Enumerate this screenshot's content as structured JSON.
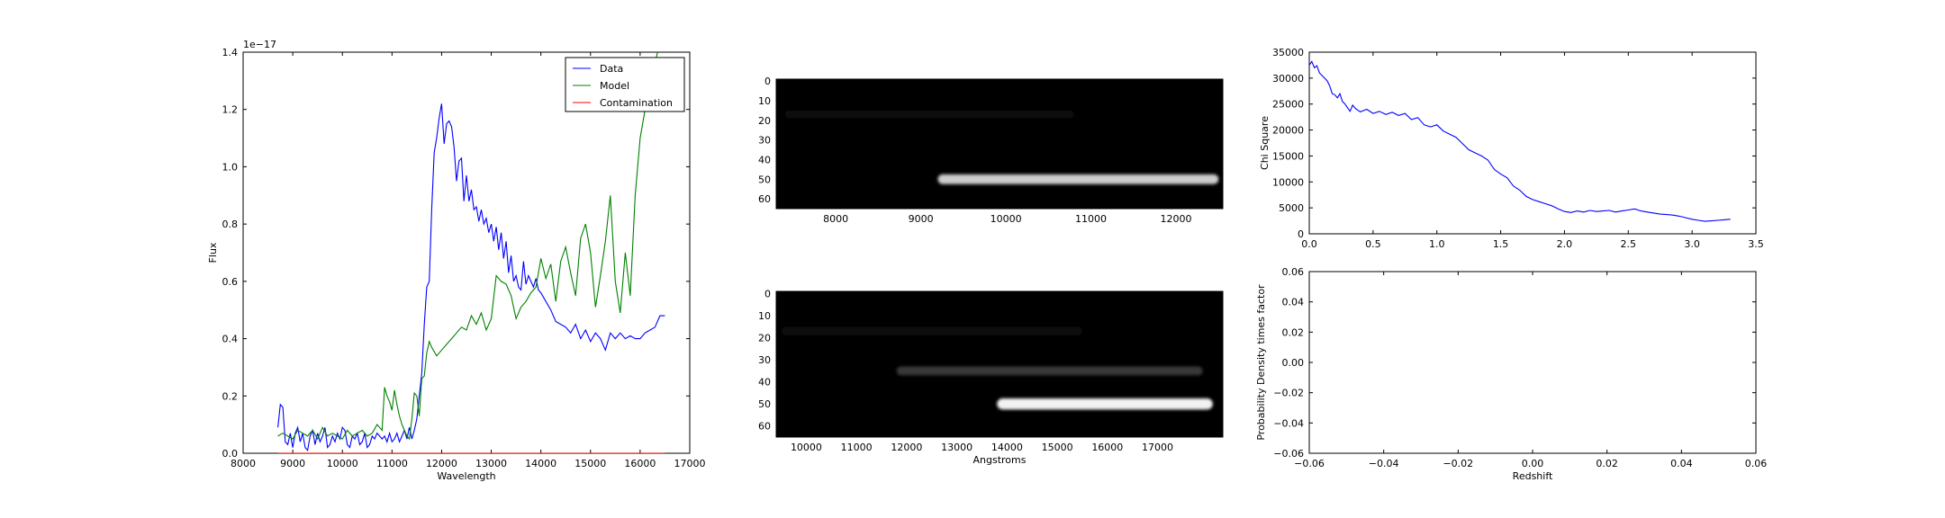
{
  "chart_data": [
    {
      "id": "spectrum",
      "type": "line",
      "xlabel": "Wavelength",
      "ylabel": "Flux",
      "offset_text": "1e−17",
      "xlim": [
        8000,
        17000
      ],
      "ylim": [
        0.0,
        1.4
      ],
      "xticks": [
        "8000",
        "9000",
        "10000",
        "11000",
        "12000",
        "13000",
        "14000",
        "15000",
        "16000",
        "17000"
      ],
      "yticks": [
        "0.0",
        "0.2",
        "0.4",
        "0.6",
        "0.8",
        "1.0",
        "1.2",
        "1.4"
      ],
      "legend_position": "top-right",
      "series": [
        {
          "name": "Data",
          "color": "#0000ff",
          "x": [
            8700,
            8750,
            8800,
            8850,
            8900,
            8950,
            9000,
            9050,
            9100,
            9150,
            9200,
            9250,
            9300,
            9350,
            9400,
            9450,
            9500,
            9550,
            9600,
            9650,
            9700,
            9750,
            9800,
            9850,
            9900,
            9950,
            10000,
            10050,
            10100,
            10150,
            10200,
            10250,
            10300,
            10350,
            10400,
            10450,
            10500,
            10550,
            10600,
            10650,
            10700,
            10750,
            10800,
            10850,
            10900,
            10950,
            11000,
            11050,
            11100,
            11150,
            11200,
            11250,
            11300,
            11350,
            11400,
            11450,
            11500,
            11550,
            11600,
            11650,
            11700,
            11750,
            11800,
            11850,
            11900,
            11950,
            12000,
            12050,
            12100,
            12150,
            12200,
            12250,
            12300,
            12350,
            12400,
            12450,
            12500,
            12550,
            12600,
            12650,
            12700,
            12750,
            12800,
            12850,
            12900,
            12950,
            13000,
            13050,
            13100,
            13150,
            13200,
            13250,
            13300,
            13350,
            13400,
            13450,
            13500,
            13550,
            13600,
            13650,
            13700,
            13750,
            13800,
            13850,
            13900,
            13950,
            14000,
            14100,
            14200,
            14300,
            14400,
            14500,
            14600,
            14700,
            14800,
            14900,
            15000,
            15100,
            15200,
            15300,
            15400,
            15500,
            15600,
            15700,
            15800,
            15900,
            16000,
            16100,
            16200,
            16300,
            16400,
            16500
          ],
          "values": [
            0.09,
            0.17,
            0.16,
            0.04,
            0.03,
            0.07,
            0.02,
            0.07,
            0.09,
            0.04,
            0.07,
            0.02,
            0.01,
            0.06,
            0.08,
            0.03,
            0.07,
            0.04,
            0.06,
            0.09,
            0.02,
            0.03,
            0.06,
            0.04,
            0.07,
            0.05,
            0.09,
            0.08,
            0.03,
            0.02,
            0.06,
            0.05,
            0.07,
            0.03,
            0.04,
            0.07,
            0.02,
            0.03,
            0.06,
            0.05,
            0.07,
            0.06,
            0.05,
            0.06,
            0.04,
            0.07,
            0.04,
            0.05,
            0.07,
            0.04,
            0.06,
            0.08,
            0.05,
            0.09,
            0.05,
            0.08,
            0.12,
            0.2,
            0.28,
            0.45,
            0.58,
            0.6,
            0.85,
            1.05,
            1.1,
            1.17,
            1.22,
            1.08,
            1.15,
            1.16,
            1.14,
            1.07,
            0.95,
            1.02,
            1.03,
            0.88,
            0.97,
            0.88,
            0.92,
            0.85,
            0.86,
            0.81,
            0.85,
            0.8,
            0.82,
            0.77,
            0.8,
            0.74,
            0.79,
            0.71,
            0.77,
            0.68,
            0.74,
            0.63,
            0.69,
            0.6,
            0.62,
            0.58,
            0.57,
            0.67,
            0.59,
            0.62,
            0.6,
            0.58,
            0.61,
            0.57,
            0.56,
            0.53,
            0.5,
            0.46,
            0.45,
            0.44,
            0.42,
            0.45,
            0.4,
            0.43,
            0.39,
            0.42,
            0.4,
            0.36,
            0.42,
            0.4,
            0.42,
            0.4,
            0.41,
            0.4,
            0.4,
            0.42,
            0.43,
            0.44,
            0.48,
            0.48
          ]
        },
        {
          "name": "Model",
          "color": "#008000",
          "x": [
            8700,
            8800,
            8900,
            9000,
            9100,
            9200,
            9300,
            9400,
            9500,
            9600,
            9700,
            9800,
            9900,
            10000,
            10100,
            10200,
            10300,
            10400,
            10500,
            10600,
            10700,
            10750,
            10800,
            10850,
            10900,
            10950,
            11000,
            11050,
            11100,
            11150,
            11200,
            11250,
            11300,
            11350,
            11400,
            11450,
            11500,
            11550,
            11600,
            11650,
            11700,
            11750,
            11800,
            11900,
            12000,
            12100,
            12200,
            12300,
            12400,
            12500,
            12600,
            12700,
            12800,
            12900,
            13000,
            13100,
            13200,
            13300,
            13400,
            13500,
            13600,
            13700,
            13800,
            13900,
            14000,
            14100,
            14200,
            14300,
            14400,
            14500,
            14600,
            14700,
            14800,
            14900,
            15000,
            15100,
            15200,
            15300,
            15400,
            15500,
            15600,
            15700,
            15800,
            15900,
            16000,
            16100,
            16150,
            16200,
            16250,
            16300,
            16350,
            16400
          ],
          "values": [
            0.06,
            0.07,
            0.06,
            0.05,
            0.08,
            0.07,
            0.06,
            0.08,
            0.05,
            0.09,
            0.06,
            0.07,
            0.06,
            0.05,
            0.08,
            0.06,
            0.07,
            0.08,
            0.06,
            0.07,
            0.1,
            0.09,
            0.08,
            0.23,
            0.2,
            0.18,
            0.15,
            0.22,
            0.17,
            0.13,
            0.1,
            0.08,
            0.06,
            0.05,
            0.12,
            0.21,
            0.2,
            0.13,
            0.26,
            0.27,
            0.35,
            0.39,
            0.37,
            0.34,
            0.36,
            0.38,
            0.4,
            0.42,
            0.44,
            0.43,
            0.48,
            0.45,
            0.49,
            0.43,
            0.47,
            0.62,
            0.6,
            0.59,
            0.55,
            0.47,
            0.51,
            0.53,
            0.56,
            0.58,
            0.68,
            0.61,
            0.66,
            0.53,
            0.67,
            0.72,
            0.63,
            0.55,
            0.75,
            0.8,
            0.7,
            0.51,
            0.62,
            0.74,
            0.9,
            0.6,
            0.49,
            0.7,
            0.55,
            0.9,
            1.1,
            1.2,
            1.22,
            1.25,
            1.3,
            1.36,
            1.4,
            1.42
          ],
          "clip": true
        },
        {
          "name": "Contamination",
          "color": "#ff0000",
          "x": [
            8700,
            16500
          ],
          "values": [
            0.0,
            0.0
          ]
        }
      ]
    },
    {
      "id": "direct-image",
      "type": "heatmap",
      "xlim": [
        7300,
        12550
      ],
      "ylim": [
        65,
        -1
      ],
      "xticks": [
        "8000",
        "9000",
        "10000",
        "11000",
        "12000"
      ],
      "yticks": [
        "0",
        "10",
        "20",
        "30",
        "40",
        "50",
        "60"
      ],
      "background": "#000000",
      "streaks": [
        {
          "x0": 9200,
          "x1": 12500,
          "y": 50,
          "brightness": 0.8,
          "thickness": 2.5
        },
        {
          "x0": 7400,
          "x1": 10800,
          "y": 17,
          "brightness": 0.05,
          "thickness": 2.0
        }
      ]
    },
    {
      "id": "dispersed-image",
      "type": "heatmap",
      "xlabel": "Angstroms",
      "xlim": [
        9400,
        18300
      ],
      "ylim": [
        65,
        -1
      ],
      "xticks": [
        "10000",
        "11000",
        "12000",
        "13000",
        "14000",
        "15000",
        "16000",
        "17000"
      ],
      "yticks": [
        "0",
        "10",
        "20",
        "30",
        "40",
        "50",
        "60"
      ],
      "background": "#000000",
      "streaks": [
        {
          "x0": 13800,
          "x1": 18100,
          "y": 50,
          "brightness": 0.95,
          "thickness": 2.5
        },
        {
          "x0": 11800,
          "x1": 17900,
          "y": 35,
          "brightness": 0.22,
          "thickness": 2.0
        },
        {
          "x0": 9500,
          "x1": 15500,
          "y": 17,
          "brightness": 0.05,
          "thickness": 2.0
        }
      ]
    },
    {
      "id": "chi-square",
      "type": "line",
      "ylabel": "Chi Square",
      "xlim": [
        0.0,
        3.5
      ],
      "ylim": [
        0,
        35000
      ],
      "xticks": [
        "0.0",
        "0.5",
        "1.0",
        "1.5",
        "2.0",
        "2.5",
        "3.0",
        "3.5"
      ],
      "yticks": [
        "0",
        "5000",
        "10000",
        "15000",
        "20000",
        "25000",
        "30000",
        "35000"
      ],
      "series": [
        {
          "color": "#0000ff",
          "x": [
            0.0,
            0.02,
            0.04,
            0.06,
            0.08,
            0.1,
            0.12,
            0.14,
            0.16,
            0.18,
            0.2,
            0.22,
            0.24,
            0.26,
            0.28,
            0.3,
            0.32,
            0.34,
            0.36,
            0.38,
            0.4,
            0.45,
            0.5,
            0.55,
            0.6,
            0.65,
            0.7,
            0.75,
            0.8,
            0.85,
            0.9,
            0.95,
            1.0,
            1.05,
            1.1,
            1.15,
            1.2,
            1.25,
            1.3,
            1.35,
            1.4,
            1.45,
            1.5,
            1.55,
            1.6,
            1.65,
            1.7,
            1.75,
            1.8,
            1.85,
            1.9,
            1.95,
            2.0,
            2.05,
            2.1,
            2.15,
            2.2,
            2.25,
            2.3,
            2.35,
            2.4,
            2.45,
            2.5,
            2.55,
            2.6,
            2.65,
            2.7,
            2.75,
            2.8,
            2.85,
            2.9,
            2.95,
            3.0,
            3.05,
            3.1,
            3.15,
            3.2,
            3.25,
            3.3
          ],
          "values": [
            32500,
            33200,
            32000,
            32400,
            31000,
            30500,
            30000,
            29500,
            28500,
            27000,
            26800,
            26200,
            27000,
            25500,
            25000,
            24300,
            23600,
            24800,
            24200,
            23800,
            23500,
            24000,
            23200,
            23600,
            23000,
            23400,
            22800,
            23200,
            22000,
            22400,
            21000,
            20600,
            21000,
            19800,
            19200,
            18600,
            17400,
            16200,
            15600,
            15000,
            14200,
            12400,
            11500,
            10800,
            9200,
            8400,
            7200,
            6600,
            6200,
            5800,
            5400,
            4800,
            4300,
            4100,
            4400,
            4200,
            4500,
            4300,
            4400,
            4500,
            4200,
            4400,
            4600,
            4800,
            4400,
            4200,
            4000,
            3800,
            3700,
            3600,
            3400,
            3100,
            2800,
            2600,
            2400,
            2500,
            2600,
            2700,
            2800
          ]
        }
      ]
    },
    {
      "id": "probability-density",
      "type": "line",
      "xlabel": "Redshift",
      "ylabel": "Probability Density times factor",
      "xlim": [
        -0.06,
        0.06
      ],
      "ylim": [
        -0.06,
        0.06
      ],
      "xticks": [
        "−0.06",
        "−0.04",
        "−0.02",
        "0.00",
        "0.02",
        "0.04",
        "0.06"
      ],
      "yticks": [
        "−0.06",
        "−0.04",
        "−0.02",
        "0.00",
        "0.02",
        "0.04",
        "0.06"
      ],
      "series": []
    }
  ]
}
